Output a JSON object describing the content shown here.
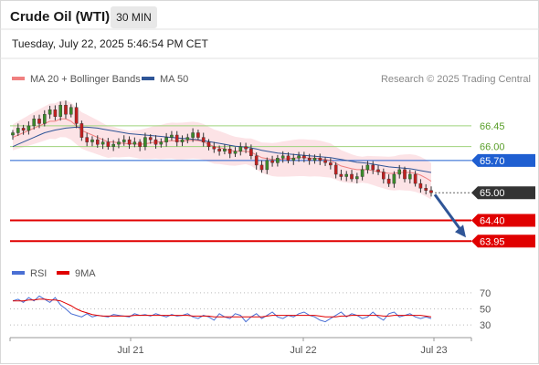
{
  "header": {
    "title": "Crude Oil (WTI)",
    "timeframe": "30 MIN",
    "datetime": "Tuesday, July 22, 2025 5:46:54 PM CET"
  },
  "legend": {
    "items": [
      {
        "label": "MA 20 + Bollinger Bands",
        "color": "#f08080"
      },
      {
        "label": "MA 50",
        "color": "#2f5597"
      }
    ],
    "credit": "Research © 2025 Trading Central"
  },
  "rsi_legend": {
    "items": [
      {
        "label": "RSI",
        "color": "#4a6fd4"
      },
      {
        "label": "9MA",
        "color": "#e00000"
      }
    ]
  },
  "chart_data": [
    {
      "type": "line",
      "title": "",
      "x_tick_labels": [
        "Jul 21",
        "Jul 22",
        "Jul 23"
      ],
      "ylim": [
        63.6,
        67.2
      ],
      "levels": [
        {
          "value": 66.45,
          "label": "66.45",
          "style": "resistance-light",
          "color": "#9fd37c"
        },
        {
          "value": 66.0,
          "label": "66.00",
          "style": "resistance-light",
          "color": "#9fd37c"
        },
        {
          "value": 65.7,
          "label": "65.70",
          "style": "pivot",
          "color": "#1f5fd1"
        },
        {
          "value": 65.0,
          "label": "65.00",
          "style": "last-price",
          "color": "#333333"
        },
        {
          "value": 64.4,
          "label": "64.40",
          "style": "support",
          "color": "#e00000"
        },
        {
          "value": 63.95,
          "label": "63.95",
          "style": "support",
          "color": "#e00000"
        }
      ],
      "series": [
        {
          "name": "Price",
          "values": [
            66.3,
            66.4,
            66.35,
            66.45,
            66.6,
            66.5,
            66.7,
            66.8,
            66.65,
            66.9,
            66.7,
            66.85,
            66.5,
            66.2,
            66.1,
            66.15,
            66.05,
            66.1,
            66.0,
            66.05,
            66.1,
            66.15,
            66.05,
            66.1,
            66.0,
            66.2,
            66.15,
            66.05,
            66.1,
            66.2,
            66.25,
            66.1,
            66.15,
            66.2,
            66.3,
            66.2,
            66.1,
            66.0,
            65.95,
            65.9,
            65.95,
            65.85,
            65.9,
            66.0,
            65.95,
            65.8,
            65.6,
            65.5,
            65.7,
            65.65,
            65.75,
            65.8,
            65.7,
            65.75,
            65.8,
            65.75,
            65.7,
            65.75,
            65.7,
            65.65,
            65.6,
            65.4,
            65.35,
            65.4,
            65.3,
            65.35,
            65.5,
            65.6,
            65.5,
            65.45,
            65.3,
            65.2,
            65.4,
            65.5,
            65.3,
            65.4,
            65.2,
            65.1,
            65.05,
            65.0
          ]
        },
        {
          "name": "MA 20",
          "values": [
            66.2,
            66.25,
            66.3,
            66.35,
            66.4,
            66.45,
            66.5,
            66.55,
            66.55,
            66.6,
            66.6,
            66.55,
            66.45,
            66.35,
            66.3,
            66.25,
            66.2,
            66.15,
            66.1,
            66.1,
            66.08,
            66.07,
            66.06,
            66.06,
            66.05,
            66.06,
            66.08,
            66.1,
            66.1,
            66.12,
            66.13,
            66.12,
            66.12,
            66.13,
            66.14,
            66.13,
            66.1,
            66.05,
            66.0,
            65.98,
            65.95,
            65.92,
            65.9,
            65.9,
            65.9,
            65.88,
            65.82,
            65.76,
            65.74,
            65.72,
            65.72,
            65.73,
            65.74,
            65.75,
            65.76,
            65.76,
            65.75,
            65.75,
            65.74,
            65.72,
            65.7,
            65.64,
            65.58,
            65.55,
            65.52,
            65.5,
            65.5,
            65.5,
            65.48,
            65.46,
            65.44,
            65.42,
            65.42,
            65.44,
            65.44,
            65.44,
            65.42,
            65.38,
            65.32,
            65.25
          ]
        },
        {
          "name": "MA 50",
          "values": [
            66.0,
            66.05,
            66.1,
            66.15,
            66.2,
            66.25,
            66.3,
            66.33,
            66.36,
            66.38,
            66.4,
            66.41,
            66.42,
            66.42,
            66.42,
            66.41,
            66.4,
            66.38,
            66.36,
            66.34,
            66.32,
            66.3,
            66.28,
            66.27,
            66.26,
            66.25,
            66.24,
            66.23,
            66.22,
            66.21,
            66.2,
            66.19,
            66.18,
            66.17,
            66.16,
            66.15,
            66.13,
            66.11,
            66.09,
            66.07,
            66.05,
            66.03,
            66.01,
            66.0,
            65.99,
            65.97,
            65.95,
            65.92,
            65.9,
            65.88,
            65.86,
            65.85,
            65.84,
            65.83,
            65.82,
            65.81,
            65.8,
            65.79,
            65.78,
            65.77,
            65.76,
            65.74,
            65.72,
            65.7,
            65.68,
            65.66,
            65.65,
            65.64,
            65.62,
            65.6,
            65.58,
            65.56,
            65.55,
            65.54,
            65.53,
            65.52,
            65.5,
            65.48,
            65.46,
            65.44
          ]
        }
      ]
    },
    {
      "type": "line",
      "title": "",
      "y_tick_labels": [
        "70",
        "50",
        "30"
      ],
      "ylim": [
        20,
        80
      ],
      "series": [
        {
          "name": "RSI",
          "values": [
            60,
            62,
            58,
            64,
            60,
            66,
            62,
            58,
            64,
            55,
            50,
            44,
            42,
            40,
            44,
            40,
            42,
            41,
            40,
            43,
            42,
            41,
            40,
            44,
            42,
            43,
            41,
            44,
            42,
            40,
            43,
            41,
            42,
            44,
            40,
            38,
            42,
            40,
            36,
            44,
            40,
            38,
            44,
            42,
            34,
            40,
            44,
            38,
            42,
            46,
            40,
            38,
            42,
            40,
            44,
            46,
            42,
            40,
            36,
            34,
            38,
            42,
            46,
            40,
            44,
            42,
            38,
            40,
            46,
            40,
            36,
            44,
            46,
            40,
            42,
            44,
            40,
            38,
            40,
            38
          ]
        },
        {
          "name": "9MA",
          "values": [
            60,
            60,
            60,
            61,
            61,
            62,
            62,
            61,
            61,
            60,
            57,
            54,
            50,
            47,
            45,
            43,
            42,
            41,
            41,
            41,
            41,
            41,
            41,
            42,
            42,
            42,
            42,
            42,
            42,
            42,
            42,
            42,
            42,
            42,
            41,
            41,
            41,
            41,
            40,
            40,
            40,
            40,
            40,
            40,
            40,
            40,
            40,
            40,
            41,
            42,
            42,
            42,
            42,
            42,
            42,
            42,
            42,
            42,
            41,
            40,
            40,
            40,
            41,
            41,
            42,
            42,
            42,
            42,
            42,
            42,
            41,
            41,
            42,
            42,
            42,
            42,
            42,
            42,
            41,
            40
          ]
        }
      ]
    }
  ]
}
